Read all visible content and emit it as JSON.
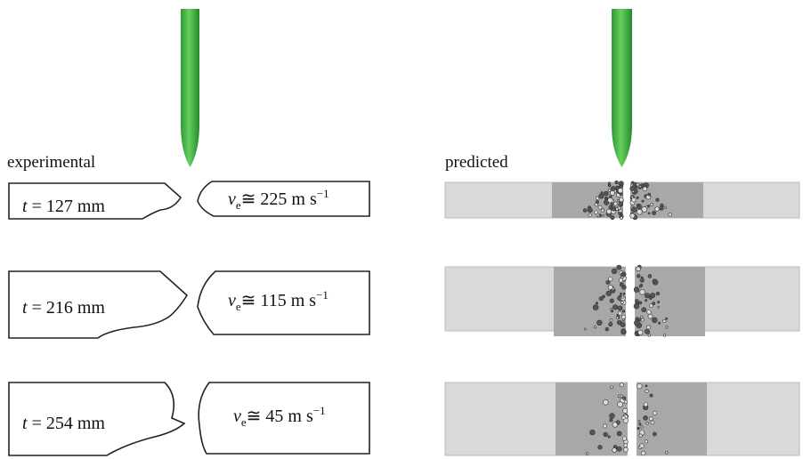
{
  "labels": {
    "left": "experimental",
    "right": "predicted"
  },
  "rows": [
    {
      "thickness": {
        "symbol": "t",
        "text": "= 127 mm"
      },
      "velocity": {
        "symbol": "v",
        "subscript": "e",
        "text": "≅ 225 m s",
        "superscript": "−1"
      }
    },
    {
      "thickness": {
        "symbol": "t",
        "text": "= 216 mm"
      },
      "velocity": {
        "symbol": "v",
        "subscript": "e",
        "text": "≅ 115 m s",
        "superscript": "−1"
      }
    },
    {
      "thickness": {
        "symbol": "t",
        "text": "= 254 mm"
      },
      "velocity": {
        "symbol": "v",
        "subscript": "e",
        "text": "≅ 45 m s",
        "superscript": "−1"
      }
    }
  ]
}
